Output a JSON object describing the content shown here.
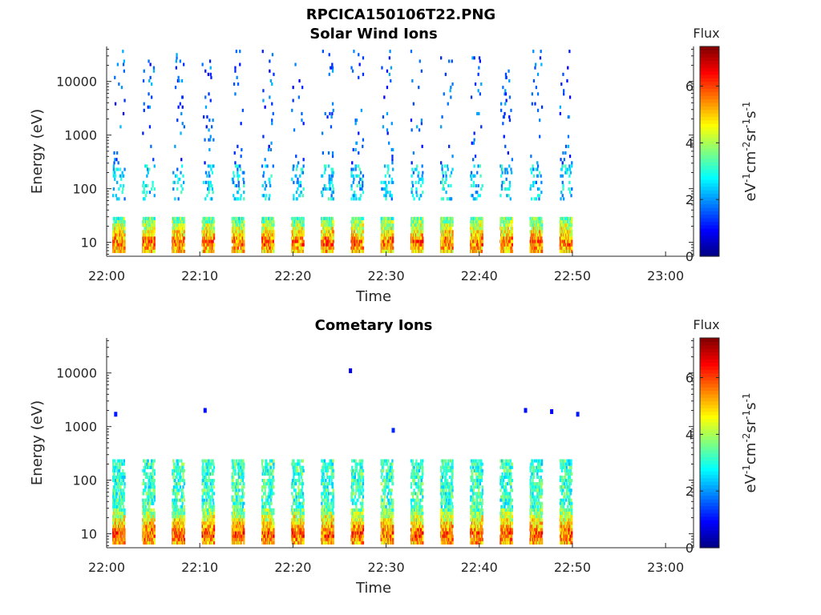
{
  "figure_title": "RPCICA150106T22.PNG",
  "chart_data": [
    {
      "type": "heatmap",
      "title": "Solar Wind Ions",
      "xlabel": "Time",
      "ylabel": "Energy (eV)",
      "x_ticks": [
        "22:00",
        "22:10",
        "22:20",
        "22:30",
        "22:40",
        "22:50",
        "23:00"
      ],
      "x_range_minutes": [
        0,
        63
      ],
      "y_scale": "log",
      "y_ticks": [
        "10",
        "100",
        "1000",
        "10000"
      ],
      "y_range": [
        5.5,
        45000
      ],
      "colorbar": {
        "label": "Flux",
        "units": "eV-1cm-2sr-1s-1",
        "ticks": [
          "0",
          "2",
          "4",
          "6"
        ],
        "range": [
          0,
          7.4
        ],
        "colormap": "jet"
      },
      "pattern": {
        "sweep_start_minutes": [
          0.6,
          3.8,
          7.0,
          10.2,
          13.4,
          16.6,
          19.8,
          23.0,
          26.2,
          29.4,
          32.6,
          35.8,
          39.0,
          42.2,
          45.4,
          48.6
        ],
        "sweep_width_minutes": 1.3,
        "data_end_minutes": 50.6,
        "low_energy_band_eV": [
          6,
          28
        ],
        "low_energy_flux_peak": 6.8,
        "mid_energy_band_eV": [
          60,
          300
        ],
        "mid_energy_flux": 2.5,
        "high_energy_scatter_eV": [
          300,
          40000
        ],
        "high_energy_flux": 1.3
      }
    },
    {
      "type": "heatmap",
      "title": "Cometary Ions",
      "xlabel": "Time",
      "ylabel": "Energy (eV)",
      "x_ticks": [
        "22:00",
        "22:10",
        "22:20",
        "22:30",
        "22:40",
        "22:50",
        "23:00"
      ],
      "x_range_minutes": [
        0,
        63
      ],
      "y_scale": "log",
      "y_ticks": [
        "10",
        "100",
        "1000",
        "10000"
      ],
      "y_range": [
        5.5,
        45000
      ],
      "colorbar": {
        "label": "Flux",
        "units": "eV-1cm-2sr-1s-1",
        "ticks": [
          "0",
          "2",
          "4",
          "6"
        ],
        "range": [
          0,
          7.4
        ],
        "colormap": "jet"
      },
      "pattern": {
        "sweep_start_minutes": [
          0.6,
          3.8,
          7.0,
          10.2,
          13.4,
          16.6,
          19.8,
          23.0,
          26.2,
          29.4,
          32.6,
          35.8,
          39.0,
          42.2,
          45.4,
          48.6
        ],
        "sweep_width_minutes": 1.3,
        "data_end_minutes": 50.6,
        "low_energy_band_eV": [
          6,
          28
        ],
        "low_energy_flux_peak": 7.0,
        "mid_energy_band_eV": [
          28,
          250
        ],
        "mid_energy_flux": 3.2,
        "isolated_points": [
          {
            "t": 26.0,
            "e": 11000,
            "flux": 0.8
          },
          {
            "t": 44.8,
            "e": 2000,
            "flux": 1.0
          },
          {
            "t": 47.6,
            "e": 1900,
            "flux": 0.9
          },
          {
            "t": 50.4,
            "e": 1700,
            "flux": 1.1
          },
          {
            "t": 10.4,
            "e": 2000,
            "flux": 1.0
          },
          {
            "t": 0.8,
            "e": 1700,
            "flux": 1.1
          },
          {
            "t": 30.6,
            "e": 850,
            "flux": 1.2
          }
        ]
      }
    }
  ]
}
